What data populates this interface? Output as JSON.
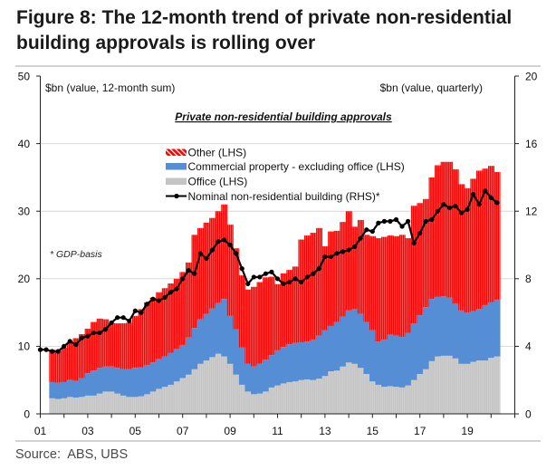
{
  "figure": {
    "title": "Figure 8: The 12-month trend of private non-residential building approvals is rolling over",
    "source": "Source:  ABS, UBS"
  },
  "chart_data": {
    "type": "bar",
    "subtype": "stacked bar with line overlay (dual axis)",
    "title": "Private non-residential building approvals",
    "ylabel_left": "$bn (value, 12-month sum)",
    "ylabel_right": "$bn (value, quarterly)",
    "xlabel": "",
    "annotation": "* GDP-basis",
    "xlim": [
      2001,
      2021
    ],
    "ylim_left": [
      0,
      50
    ],
    "ylim_right": [
      0,
      20
    ],
    "yticks_left": [
      0,
      10,
      20,
      30,
      40,
      50
    ],
    "yticks_right": [
      0,
      4,
      8,
      12,
      16,
      20
    ],
    "xtick_step_years": 1,
    "xticklabels": [
      {
        "year": 2001,
        "label": "01"
      },
      {
        "year": 2003,
        "label": "03"
      },
      {
        "year": 2005,
        "label": "05"
      },
      {
        "year": 2007,
        "label": "07"
      },
      {
        "year": 2009,
        "label": "09"
      },
      {
        "year": 2011,
        "label": "11"
      },
      {
        "year": 2013,
        "label": "13"
      },
      {
        "year": 2015,
        "label": "15"
      },
      {
        "year": 2017,
        "label": "17"
      },
      {
        "year": 2019,
        "label": "19"
      }
    ],
    "grid": "horizontal",
    "legend_position": "upper-center",
    "x": [
      2001.5,
      2001.75,
      2002,
      2002.25,
      2002.5,
      2002.75,
      2003,
      2003.25,
      2003.5,
      2003.75,
      2004,
      2004.25,
      2004.5,
      2004.75,
      2005,
      2005.25,
      2005.5,
      2005.75,
      2006,
      2006.25,
      2006.5,
      2006.75,
      2007,
      2007.25,
      2007.5,
      2007.75,
      2008,
      2008.25,
      2008.5,
      2008.75,
      2009,
      2009.25,
      2009.5,
      2009.75,
      2010,
      2010.25,
      2010.5,
      2010.75,
      2011,
      2011.25,
      2011.5,
      2011.75,
      2012,
      2012.25,
      2012.5,
      2012.75,
      2013,
      2013.25,
      2013.5,
      2013.75,
      2014,
      2014.25,
      2014.5,
      2014.75,
      2015,
      2015.25,
      2015.5,
      2015.75,
      2016,
      2016.25,
      2016.5,
      2016.75,
      2017,
      2017.25,
      2017.5,
      2017.75,
      2018,
      2018.25,
      2018.5,
      2018.75,
      2019,
      2019.25,
      2019.5,
      2019.75,
      2020,
      2020.25
    ],
    "series": [
      {
        "key": "other",
        "name": "Other (LHS)",
        "kind": "bar",
        "axis": "left",
        "color": "#ff0000",
        "values": [
          4.8,
          4.7,
          5.1,
          5.6,
          6.3,
          6.5,
          6.6,
          7.2,
          7.3,
          7.0,
          6.4,
          6.6,
          6.8,
          6.9,
          7.7,
          8.6,
          9.3,
          9.6,
          9.9,
          10.1,
          10.3,
          10.4,
          10.8,
          11.1,
          13.8,
          13.5,
          13.5,
          13.4,
          13.6,
          14.0,
          13.5,
          12.0,
          10.7,
          11.0,
          11.8,
          12.1,
          12.2,
          11.6,
          9.8,
          10.9,
          11.0,
          11.3,
          15.2,
          15.7,
          15.8,
          15.9,
          12.4,
          14.0,
          13.5,
          14.0,
          14.7,
          12.2,
          13.9,
          12.9,
          13.9,
          15.3,
          15.2,
          14.7,
          14.7,
          15.1,
          14.0,
          17.4,
          16.6,
          16.0,
          18.0,
          19.5,
          19.9,
          20.1,
          19.9,
          18.7,
          18.4,
          19.6,
          20.5,
          20.2,
          20.2,
          18.9
        ]
      },
      {
        "key": "commercial",
        "name": "Commercial property - excluding office (LHS)",
        "kind": "bar",
        "axis": "left",
        "color": "#558ed5",
        "values": [
          2.4,
          2.4,
          2.4,
          2.5,
          2.5,
          2.8,
          3.3,
          3.7,
          3.8,
          3.7,
          3.7,
          3.8,
          3.9,
          4.1,
          4.3,
          4.3,
          4.3,
          4.3,
          4.4,
          4.5,
          4.7,
          4.8,
          4.9,
          5.5,
          6.1,
          6.6,
          6.9,
          7.2,
          7.5,
          8.5,
          7.1,
          6.7,
          5.5,
          4.1,
          4.1,
          4.4,
          4.7,
          4.8,
          5.2,
          5.4,
          5.6,
          5.7,
          5.6,
          5.6,
          6.0,
          6.4,
          6.8,
          6.7,
          7.2,
          7.4,
          7.7,
          8.1,
          8.0,
          7.7,
          7.6,
          6.4,
          7.0,
          7.6,
          7.6,
          7.5,
          7.8,
          8.4,
          8.7,
          9.2,
          9.2,
          8.8,
          8.8,
          8.6,
          8.1,
          7.9,
          7.6,
          7.5,
          7.6,
          8.2,
          8.2,
          8.4
        ]
      },
      {
        "key": "office",
        "name": "Office (LHS)",
        "kind": "bar",
        "axis": "left",
        "color": "#c4c4c4",
        "values": [
          2.3,
          2.2,
          2.3,
          2.5,
          2.4,
          2.5,
          2.7,
          2.7,
          3.0,
          3.3,
          3.3,
          3.0,
          2.7,
          2.5,
          2.5,
          2.6,
          2.9,
          3.3,
          3.7,
          4.0,
          4.3,
          4.8,
          5.3,
          5.8,
          6.6,
          7.4,
          7.9,
          8.4,
          8.9,
          8.5,
          7.4,
          5.8,
          4.3,
          3.3,
          2.9,
          3.0,
          3.3,
          3.9,
          4.2,
          4.5,
          4.7,
          4.8,
          5.0,
          5.1,
          5.0,
          5.2,
          5.6,
          6.3,
          6.4,
          7.0,
          7.6,
          7.4,
          6.8,
          5.9,
          4.8,
          4.3,
          4.0,
          4.1,
          4.0,
          3.9,
          4.2,
          5.0,
          5.9,
          6.6,
          7.8,
          8.5,
          8.6,
          8.6,
          8.2,
          7.4,
          7.4,
          7.7,
          7.9,
          7.9,
          8.3,
          8.5
        ]
      },
      {
        "key": "nominal",
        "name": "Nominal non-residential building (RHS)*",
        "kind": "line",
        "axis": "right",
        "color": "#000000",
        "x": [
          2001,
          2001.25,
          2001.5,
          2001.75,
          2002,
          2002.25,
          2002.5,
          2002.75,
          2003,
          2003.25,
          2003.5,
          2003.75,
          2004,
          2004.25,
          2004.5,
          2004.75,
          2005,
          2005.25,
          2005.5,
          2005.75,
          2006,
          2006.25,
          2006.5,
          2006.75,
          2007,
          2007.25,
          2007.5,
          2007.75,
          2008,
          2008.25,
          2008.5,
          2008.75,
          2009,
          2009.25,
          2009.5,
          2009.75,
          2010,
          2010.25,
          2010.5,
          2010.75,
          2011,
          2011.25,
          2011.5,
          2011.75,
          2012,
          2012.25,
          2012.5,
          2012.75,
          2013,
          2013.25,
          2013.5,
          2013.75,
          2014,
          2014.25,
          2014.5,
          2014.75,
          2015,
          2015.25,
          2015.5,
          2015.75,
          2016,
          2016.25,
          2016.5,
          2016.75,
          2017,
          2017.25,
          2017.5,
          2017.75,
          2018,
          2018.25,
          2018.5,
          2018.75,
          2019,
          2019.25,
          2019.5,
          2019.75,
          2020,
          2020.25
        ],
        "values": [
          3.8,
          3.8,
          3.7,
          3.7,
          4.0,
          4.3,
          4.1,
          4.5,
          4.6,
          4.8,
          4.8,
          5.0,
          5.4,
          5.7,
          5.7,
          5.5,
          6.1,
          6.0,
          6.5,
          6.8,
          6.7,
          6.9,
          7.2,
          7.4,
          8.0,
          8.5,
          8.3,
          9.5,
          9.2,
          9.7,
          10.2,
          10.3,
          10.0,
          9.5,
          8.6,
          7.7,
          8.1,
          8.1,
          8.3,
          8.4,
          8.0,
          7.7,
          7.8,
          8.0,
          7.8,
          8.1,
          8.3,
          8.6,
          9.3,
          9.3,
          9.5,
          9.6,
          9.7,
          9.9,
          10.4,
          10.9,
          10.8,
          11.3,
          11.4,
          11.4,
          11.5,
          11.1,
          11.4,
          10.1,
          10.7,
          11.4,
          11.5,
          12.0,
          12.4,
          12.2,
          12.3,
          11.9,
          12.1,
          13.0,
          12.4,
          13.2,
          12.8,
          12.5
        ]
      }
    ]
  },
  "colors": {
    "other": "#ff0000",
    "commercial": "#558ed5",
    "office": "#c4c4c4",
    "line": "#000000",
    "gridline": "#d9d9d9",
    "rule": "#d2d2d2"
  }
}
